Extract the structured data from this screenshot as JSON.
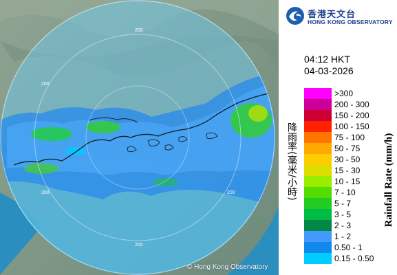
{
  "map": {
    "range_ring_labels": [
      "200",
      "200",
      "200",
      "200",
      "200"
    ],
    "copyright": "© Hong Kong Observatory",
    "colors": {
      "sea": "#1e88b8",
      "land": "#8a9e8f",
      "radar_coverage": "#6fc5e3",
      "coastline": "#10202a"
    }
  },
  "header": {
    "org_zh": "香港天文台",
    "org_en": "HONG KONG OBSERVATORY",
    "logo_icon": "hko-logo-icon"
  },
  "timestamp": {
    "time": "04:12 HKT",
    "date": "04-03-2026"
  },
  "legend": {
    "title_zh": "降雨率(毫米/小時)",
    "title_en": "Rainfall Rate (mm/h)",
    "items": [
      {
        "label": ">300",
        "color": "#ff00ff"
      },
      {
        "label": "200 - 300",
        "color": "#cc0099"
      },
      {
        "label": "150 - 200",
        "color": "#cc0033"
      },
      {
        "label": "100 - 150",
        "color": "#ff2200"
      },
      {
        "label": "75 - 100",
        "color": "#ff7700"
      },
      {
        "label": "50 - 75",
        "color": "#ffaa00"
      },
      {
        "label": "30 - 50",
        "color": "#ffcc00"
      },
      {
        "label": "15 - 30",
        "color": "#dddd00"
      },
      {
        "label": "10 - 15",
        "color": "#99ee00"
      },
      {
        "label": "7 - 10",
        "color": "#55dd00"
      },
      {
        "label": "5 - 7",
        "color": "#22cc22"
      },
      {
        "label": "3 - 5",
        "color": "#00bb44"
      },
      {
        "label": "2 - 3",
        "color": "#008844"
      },
      {
        "label": "1 - 2",
        "color": "#4499ff"
      },
      {
        "label": "0.50 - 1",
        "color": "#1188ee"
      },
      {
        "label": "0.15 - 0.50",
        "color": "#00ccff"
      }
    ]
  }
}
